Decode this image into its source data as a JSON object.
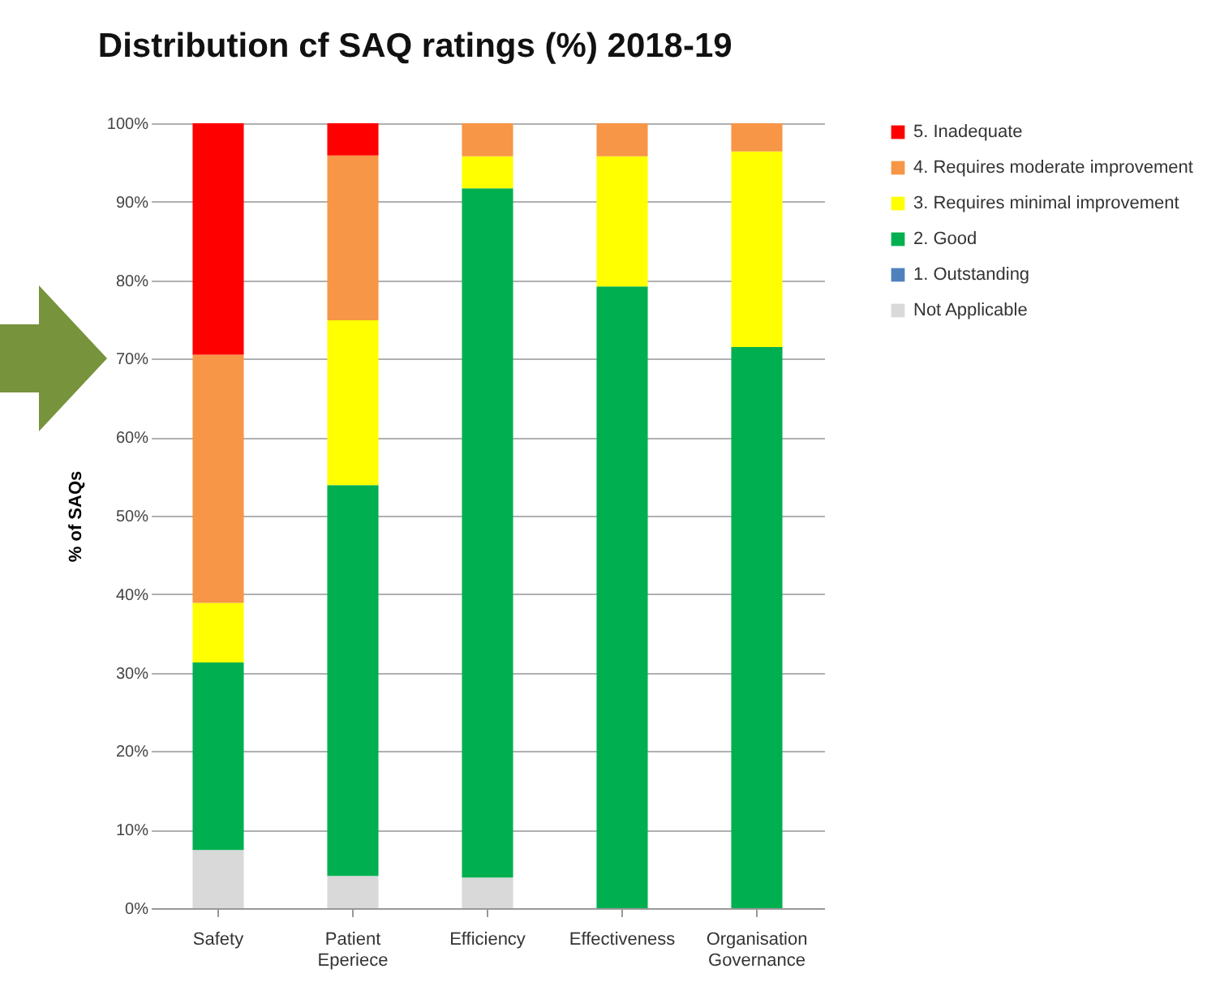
{
  "chart_data": {
    "type": "bar",
    "title": "Distribution cf SAQ ratings (%) 2018-19",
    "ylabel": "% of SAQs",
    "categories": [
      "Safety",
      "Patient Eperiece",
      "Efficiency",
      "Effectiveness",
      "Organisation Governance"
    ],
    "stacked": true,
    "grid": "y",
    "legend": "right",
    "ylim": [
      0,
      100
    ],
    "yticks": [
      {
        "value": 0,
        "label": "0%"
      },
      {
        "value": 10,
        "label": "10%"
      },
      {
        "value": 20,
        "label": "20%"
      },
      {
        "value": 30,
        "label": "30%"
      },
      {
        "value": 40,
        "label": "40%"
      },
      {
        "value": 50,
        "label": "50%"
      },
      {
        "value": 60,
        "label": "60%"
      },
      {
        "value": 70,
        "label": "70%"
      },
      {
        "value": 80,
        "label": "80%"
      },
      {
        "value": 90,
        "label": "90%"
      },
      {
        "value": 100,
        "label": "100%"
      }
    ],
    "series": [
      {
        "name": "Not Applicable",
        "color": "#d9d9d9",
        "values": [
          7.4,
          4.1,
          3.9,
          0,
          0
        ]
      },
      {
        "name": "1. Outstanding",
        "color": "#4f81bd",
        "values": [
          0,
          0,
          0,
          0,
          0
        ]
      },
      {
        "name": "2. Good",
        "color": "#00b050",
        "values": [
          23.9,
          49.8,
          87.8,
          79.2,
          71.5
        ]
      },
      {
        "name": "3. Requires minimal improvement",
        "color": "#ffff00",
        "values": [
          7.6,
          21.0,
          4.1,
          16.6,
          24.9
        ]
      },
      {
        "name": "4. Requires moderate improvement",
        "color": "#f79646",
        "values": [
          31.6,
          21.0,
          4.2,
          4.2,
          3.6
        ]
      },
      {
        "name": "5. Inadequate",
        "color": "#ff0000",
        "values": [
          29.5,
          4.1,
          0,
          0,
          0
        ]
      }
    ]
  }
}
